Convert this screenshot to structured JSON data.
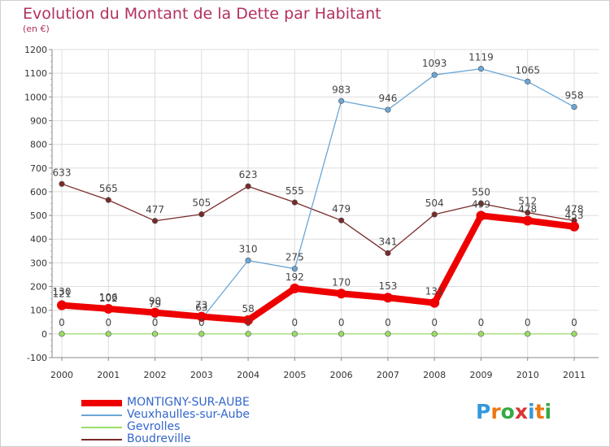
{
  "chart_data": {
    "type": "line",
    "title": "Evolution du Montant de la Dette par Habitant",
    "subtitle": "(en €)",
    "xlabel": "",
    "ylabel": "",
    "categories": [
      "2000",
      "2001",
      "2002",
      "2003",
      "2004",
      "2005",
      "2006",
      "2007",
      "2008",
      "2009",
      "2010",
      "2011"
    ],
    "ylim": [
      -100,
      1200
    ],
    "yticks": [
      -100,
      0,
      100,
      200,
      300,
      400,
      500,
      600,
      700,
      800,
      900,
      1000,
      1100,
      1200
    ],
    "grid": true,
    "series": [
      {
        "name": "MONTIGNY-SUR-AUBE",
        "color": "#ee0000",
        "values": [
          121,
          106,
          90,
          73,
          58,
          192,
          170,
          153,
          131,
          499,
          478,
          453
        ]
      },
      {
        "name": "Veuxhaulles-sur-Aube",
        "color": "#6aa6d6",
        "values": [
          130,
          102,
          79,
          63,
          310,
          275,
          983,
          946,
          1093,
          1119,
          1065,
          958
        ]
      },
      {
        "name": "Gevrolles",
        "color": "#99dd66",
        "values": [
          0,
          0,
          0,
          0,
          0,
          0,
          0,
          0,
          0,
          0,
          0,
          0
        ]
      },
      {
        "name": "Boudreville",
        "color": "#7a2a2a",
        "values": [
          633,
          565,
          477,
          505,
          623,
          555,
          479,
          341,
          504,
          550,
          512,
          478
        ]
      }
    ],
    "legend_position": "bottom-left"
  },
  "logo": {
    "letters": [
      "P",
      "r",
      "o",
      "x",
      "i",
      "t",
      "i"
    ],
    "colors": [
      "#3399dd",
      "#ee7711",
      "#33aa44",
      "#dd3333",
      "#3399dd",
      "#ee7711",
      "#33aa44"
    ]
  }
}
